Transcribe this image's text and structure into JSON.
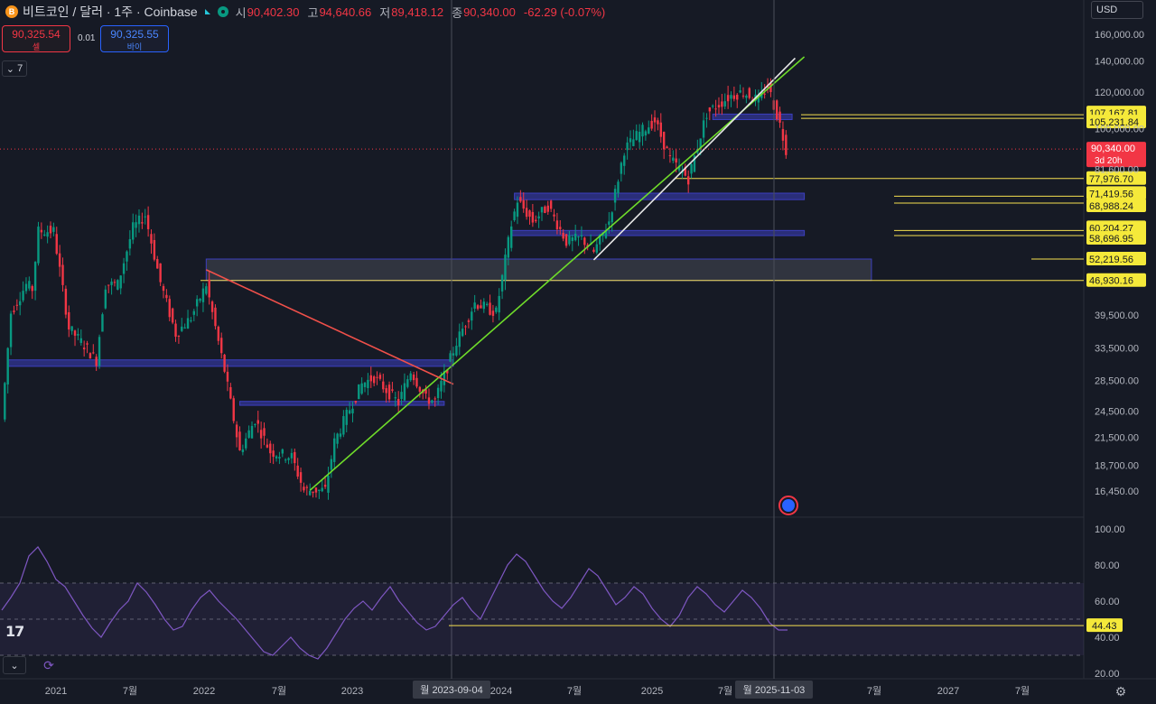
{
  "header": {
    "symbol": "비트코인 / 달러 · 1주 · Coinbase",
    "symbol_icon": "B",
    "open_label": "시",
    "open": "90,402.30",
    "high_label": "고",
    "high": "94,640.66",
    "low_label": "저",
    "low": "89,418.12",
    "close_label": "종",
    "close": "90,340.00",
    "change": "-62.29 (-0.07%)"
  },
  "trade": {
    "sell_price": "90,325.54",
    "sell_label": "셀",
    "spread": "0.01",
    "buy_price": "90,325.55",
    "buy_label": "바이"
  },
  "indicators_toggle": "7",
  "currency": "USD",
  "colors": {
    "up": "#089981",
    "down": "#f23645",
    "level": "#f5e050",
    "trend_green": "#6fdc2a",
    "trend_red": "#f0504a",
    "trend_white": "#e8e8e8",
    "zone_blue": "#3c3fbf",
    "rsi": "#7e57c2",
    "bg": "#161a25",
    "label_bg": "#f5e93a"
  },
  "chart_data": [
    {
      "type": "candlestick",
      "title": "비트코인 / 달러 · 1주 · Coinbase",
      "scale": "log",
      "ylim": [
        14500,
        175000
      ],
      "xlim": [
        "2020-12-10",
        "2027-10-01"
      ],
      "y_ticks": [
        "160,000.00",
        "140,000.00",
        "120,000.00",
        "100,000.00",
        "81,600.00",
        "39,500.00",
        "33,500.00",
        "28,500.00",
        "24,500.00",
        "21,500.00",
        "18,700.00",
        "16,450.00"
      ],
      "x_ticks": [
        "2021",
        "7월",
        "2022",
        "7월",
        "2023",
        "7월",
        "2024",
        "7월",
        "2025",
        "7월",
        "2026",
        "7월",
        "2027",
        "7월"
      ],
      "approx_weekly_closes": [
        [
          "2020-12-14",
          23500
        ],
        [
          "2021-01-04",
          40000
        ],
        [
          "2021-02-08",
          46000
        ],
        [
          "2021-02-22",
          45000
        ],
        [
          "2021-03-08",
          60000
        ],
        [
          "2021-04-12",
          60000
        ],
        [
          "2021-05-17",
          37000
        ],
        [
          "2021-06-21",
          34000
        ],
        [
          "2021-07-19",
          31500
        ],
        [
          "2021-08-09",
          46000
        ],
        [
          "2021-09-06",
          46000
        ],
        [
          "2021-10-11",
          61000
        ],
        [
          "2021-11-08",
          65000
        ],
        [
          "2021-12-13",
          46500
        ],
        [
          "2022-01-17",
          36000
        ],
        [
          "2022-02-21",
          39000
        ],
        [
          "2022-03-28",
          46000
        ],
        [
          "2022-05-09",
          30000
        ],
        [
          "2022-06-13",
          20000
        ],
        [
          "2022-07-18",
          23500
        ],
        [
          "2022-08-22",
          20000
        ],
        [
          "2022-10-10",
          19500
        ],
        [
          "2022-11-07",
          16500
        ],
        [
          "2022-12-26",
          16500
        ],
        [
          "2023-01-16",
          21000
        ],
        [
          "2023-02-13",
          24000
        ],
        [
          "2023-03-20",
          28000
        ],
        [
          "2023-04-17",
          29000
        ],
        [
          "2023-06-12",
          25500
        ],
        [
          "2023-07-10",
          30000
        ],
        [
          "2023-08-14",
          26000
        ],
        [
          "2023-09-04",
          25800
        ],
        [
          "2023-10-23",
          34500
        ],
        [
          "2023-12-04",
          42000
        ],
        [
          "2024-01-22",
          40000
        ],
        [
          "2024-02-26",
          62000
        ],
        [
          "2024-03-11",
          70000
        ],
        [
          "2024-04-15",
          63000
        ],
        [
          "2024-05-20",
          68000
        ],
        [
          "2024-07-01",
          57000
        ],
        [
          "2024-08-05",
          58000
        ],
        [
          "2024-09-02",
          54000
        ],
        [
          "2024-10-07",
          63000
        ],
        [
          "2024-11-11",
          90000
        ],
        [
          "2024-12-16",
          98000
        ],
        [
          "2025-01-20",
          104000
        ],
        [
          "2025-02-24",
          86000
        ],
        [
          "2025-04-07",
          78000
        ],
        [
          "2025-05-19",
          108000
        ],
        [
          "2025-07-14",
          118000
        ],
        [
          "2025-08-11",
          120000
        ],
        [
          "2025-09-15",
          115000
        ],
        [
          "2025-10-06",
          124000
        ],
        [
          "2025-11-03",
          102000
        ],
        [
          "2025-11-17",
          90340
        ]
      ],
      "horizontal_levels": [
        "107,167.81",
        "105,231.84",
        "77,976.70",
        "71,419.56",
        "68,988.24",
        "60,204.27",
        "58,696.95",
        "52,219.56",
        "46,930.16"
      ],
      "last_price": "90,340.00",
      "last_price_countdown": "3d 20h",
      "cursor_dates": [
        "월 2023-09-04",
        "월 2025-11-03"
      ],
      "drawings": [
        {
          "kind": "trendline",
          "color": "green",
          "from": [
            "2022-11-21",
            16500
          ],
          "to": [
            "2025-12-29",
            143000
          ]
        },
        {
          "kind": "trendline",
          "color": "red",
          "from": [
            "2022-03-28",
            49500
          ],
          "to": [
            "2023-10-16",
            28000
          ]
        },
        {
          "kind": "trendline",
          "color": "white",
          "from": [
            "2024-09-02",
            52000
          ],
          "to": [
            "2025-12-08",
            142000
          ]
        },
        {
          "kind": "zone",
          "from": [
            "2022-03-28",
            46930.16
          ],
          "to": [
            "2026-06-01",
            52219.56
          ]
        },
        {
          "kind": "zone",
          "from": [
            "2020-12-28",
            30600
          ],
          "to": [
            "2023-10-16",
            31600
          ]
        },
        {
          "kind": "zone",
          "from": [
            "2022-06-13",
            25200
          ],
          "to": [
            "2023-09-25",
            25700
          ]
        },
        {
          "kind": "zone",
          "from": [
            "2024-03-04",
            70200
          ],
          "to": [
            "2025-12-29",
            72500
          ]
        },
        {
          "kind": "zone",
          "from": [
            "2024-02-26",
            58696.95
          ],
          "to": [
            "2025-12-29",
            60204.27
          ]
        },
        {
          "kind": "zone",
          "from": [
            "2025-06-02",
            104600
          ],
          "to": [
            "2025-12-01",
            107500
          ]
        }
      ]
    },
    {
      "type": "line",
      "title": "",
      "series": [
        {
          "values": [
            55,
            62,
            70,
            85,
            90,
            82,
            72,
            68,
            60,
            52,
            45,
            40,
            48,
            55,
            60,
            70,
            65,
            58,
            50,
            44,
            46,
            55,
            62,
            66,
            60,
            55,
            50,
            44,
            38,
            32,
            30,
            35,
            40,
            34,
            30,
            28,
            34,
            42,
            50,
            56,
            60,
            55,
            62,
            68,
            60,
            54,
            48,
            44,
            46,
            52,
            58,
            62,
            55,
            50,
            60,
            70,
            80,
            86,
            82,
            74,
            66,
            60,
            56,
            62,
            70,
            78,
            74,
            66,
            58,
            62,
            68,
            64,
            56,
            50,
            46,
            52,
            62,
            68,
            64,
            58,
            54,
            60,
            66,
            62,
            56,
            48,
            44,
            44
          ]
        }
      ],
      "ylim": [
        20,
        100
      ],
      "y_ticks": [
        "100.00",
        "80.00",
        "60.00",
        "40.00",
        "20.00"
      ],
      "levels": [
        70,
        50,
        30
      ],
      "current_value": "44.43"
    }
  ]
}
